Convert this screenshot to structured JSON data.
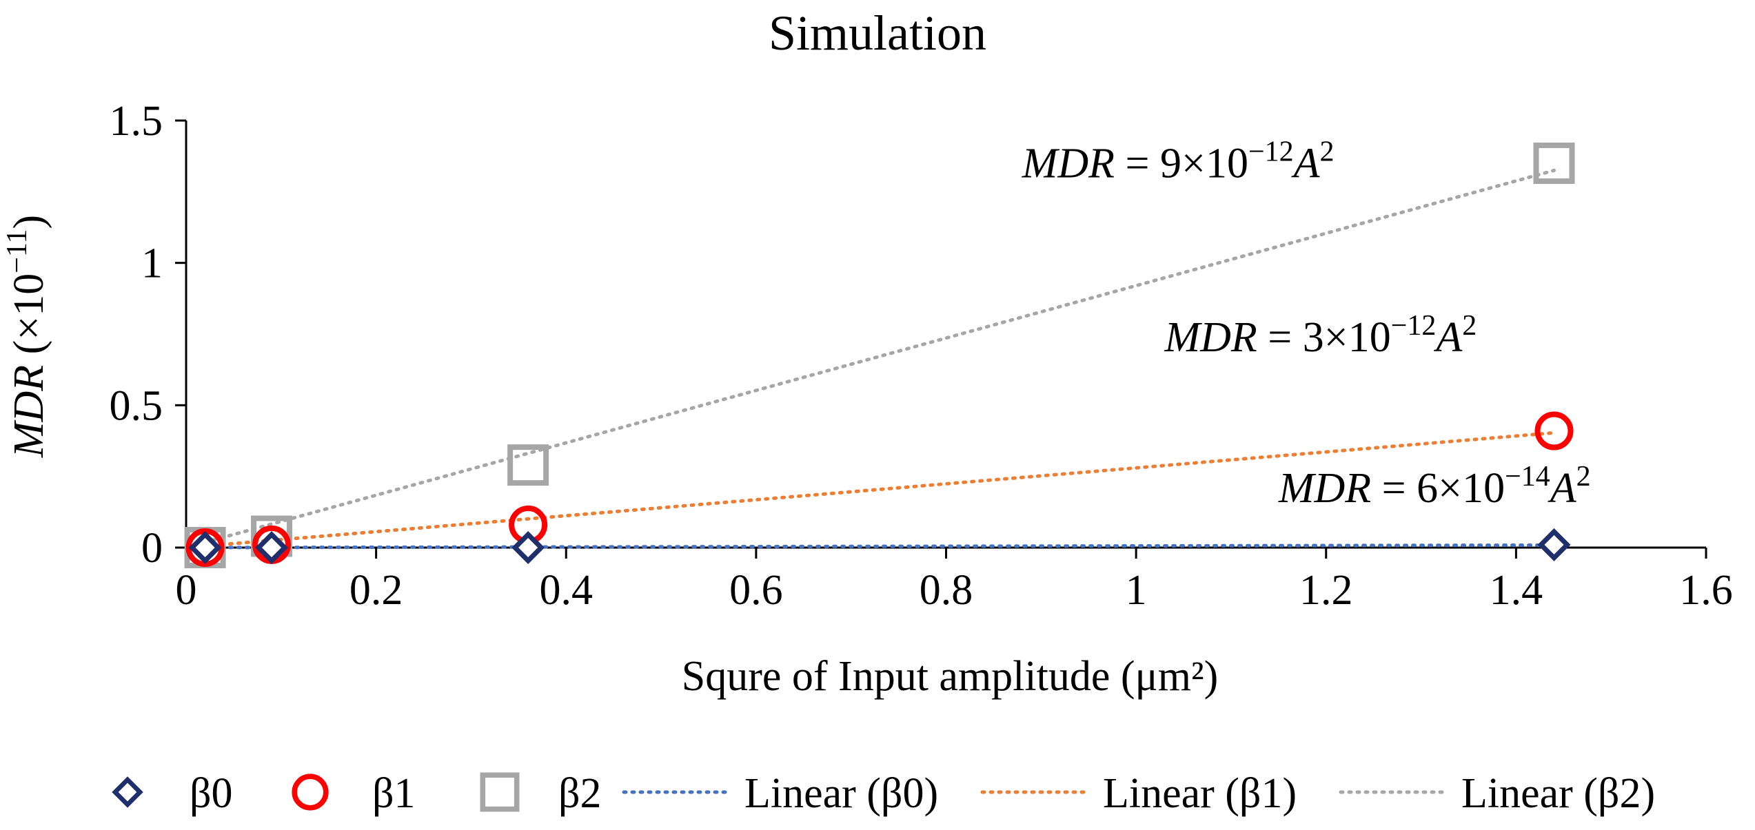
{
  "chart_data": {
    "type": "scatter",
    "title": "Simulation",
    "xlabel": "Squre of Input amplitude (μm²)",
    "ylabel": {
      "italic": "MDR",
      "rest": " (×10",
      "sup": "−11",
      "close": ")"
    },
    "xlim": [
      0,
      1.6
    ],
    "ylim": [
      0,
      1.5
    ],
    "x_ticks": [
      0,
      0.2,
      0.4,
      0.6,
      0.8,
      1,
      1.2,
      1.4,
      1.6
    ],
    "x_tick_labels": [
      "0",
      "0.2",
      "0.4",
      "0.6",
      "0.8",
      "1",
      "1.2",
      "1.4",
      "1.6"
    ],
    "y_ticks": [
      0,
      0.5,
      1,
      1.5
    ],
    "y_tick_labels": [
      "0",
      "0.5",
      "1",
      "1.5"
    ],
    "x": [
      0.02,
      0.09,
      0.36,
      1.44
    ],
    "series": [
      {
        "name": "β0",
        "marker": "diamond",
        "color": "#1f2f6b",
        "values": [
          0.0,
          0.0,
          0.0,
          0.01
        ],
        "trend": {
          "name": "Linear (β0)",
          "slope": 0.006,
          "color": "#4472c4"
        }
      },
      {
        "name": "β1",
        "marker": "circle",
        "color": "#ff0000",
        "values": [
          0.0,
          0.01,
          0.08,
          0.41
        ],
        "trend": {
          "name": "Linear (β1)",
          "slope": 0.28,
          "color": "#ed7d31"
        }
      },
      {
        "name": "β2",
        "marker": "square",
        "color": "#a6a6a6",
        "values": [
          0.0,
          0.04,
          0.29,
          1.35
        ],
        "trend": {
          "name": "Linear (β2)",
          "slope": 0.92,
          "color": "#a6a6a6"
        }
      }
    ],
    "annotations": [
      {
        "italic": "MDR",
        "mid": " = 9×10",
        "sup": "−12",
        "var": "A",
        "pow": "2",
        "x": 0.88,
        "y": 1.3
      },
      {
        "italic": "MDR",
        "mid": " = 3×10",
        "sup": "−12",
        "var": "A",
        "pow": "2",
        "x": 1.03,
        "y": 0.69
      },
      {
        "italic": "MDR",
        "mid": " = 6×10",
        "sup": "−14",
        "var": "A",
        "pow": "2",
        "x": 1.15,
        "y": 0.16
      }
    ],
    "legend": {
      "position": "bottom",
      "entries": [
        "β0",
        "β1",
        "β2",
        "Linear (β0)",
        "Linear (β1)",
        "Linear (β2)"
      ]
    },
    "grid": false
  }
}
